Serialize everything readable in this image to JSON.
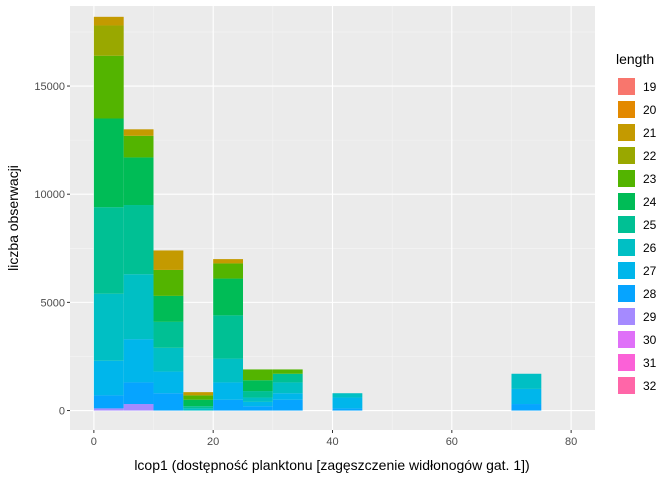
{
  "chart_data": {
    "type": "bar",
    "stacked": true,
    "xlabel": "lcop1 (dostępność planktonu [zagęszczenie widłonogów gat. 1])",
    "ylabel": "liczba obserwacji",
    "xlim": [
      -4,
      84
    ],
    "ylim": [
      -900,
      18700
    ],
    "x_ticks": [
      0,
      20,
      40,
      60,
      80
    ],
    "y_ticks": [
      0,
      5000,
      10000,
      15000
    ],
    "y_tick_labels": [
      "0",
      "5000",
      "10000",
      "15000"
    ],
    "bin_width": 5,
    "bins": [
      0,
      5,
      10,
      15,
      20,
      25,
      30,
      40,
      70
    ],
    "grid": true,
    "legend_title": "length",
    "legend_position": "right",
    "series": [
      {
        "name": "19",
        "color": "#F8766D",
        "values": [
          0,
          0,
          0,
          0,
          0,
          0,
          0,
          0,
          0
        ]
      },
      {
        "name": "20",
        "color": "#E38900",
        "values": [
          0,
          0,
          0,
          0,
          0,
          0,
          0,
          0,
          0
        ]
      },
      {
        "name": "21",
        "color": "#C49A00",
        "values": [
          400,
          300,
          900,
          150,
          200,
          0,
          0,
          0,
          0
        ]
      },
      {
        "name": "22",
        "color": "#99A800",
        "values": [
          1400,
          0,
          0,
          0,
          0,
          0,
          0,
          0,
          0
        ]
      },
      {
        "name": "23",
        "color": "#53B400",
        "values": [
          2900,
          1000,
          1200,
          200,
          700,
          500,
          200,
          0,
          0
        ]
      },
      {
        "name": "24",
        "color": "#00BC56",
        "values": [
          4100,
          2200,
          1200,
          300,
          1700,
          500,
          0,
          0,
          0
        ]
      },
      {
        "name": "25",
        "color": "#00C094",
        "values": [
          4000,
          3200,
          1200,
          100,
          2000,
          300,
          400,
          0,
          0
        ]
      },
      {
        "name": "26",
        "color": "#00BFC4",
        "values": [
          3100,
          3000,
          1100,
          100,
          1100,
          200,
          500,
          200,
          700
        ]
      },
      {
        "name": "27",
        "color": "#00B6EB",
        "values": [
          1600,
          2000,
          1000,
          0,
          800,
          200,
          300,
          500,
          700
        ]
      },
      {
        "name": "28",
        "color": "#06A4FF",
        "values": [
          600,
          1000,
          800,
          0,
          500,
          200,
          500,
          100,
          300
        ]
      },
      {
        "name": "29",
        "color": "#A58AFF",
        "values": [
          100,
          300,
          0,
          0,
          0,
          0,
          0,
          0,
          0
        ]
      },
      {
        "name": "30",
        "color": "#DF70F8",
        "values": [
          0,
          0,
          0,
          0,
          0,
          0,
          0,
          0,
          0
        ]
      },
      {
        "name": "31",
        "color": "#FB61D7",
        "values": [
          0,
          0,
          0,
          0,
          0,
          0,
          0,
          0,
          0
        ]
      },
      {
        "name": "32",
        "color": "#FF66A8",
        "values": [
          0,
          0,
          0,
          0,
          0,
          0,
          0,
          0,
          0
        ]
      }
    ]
  }
}
